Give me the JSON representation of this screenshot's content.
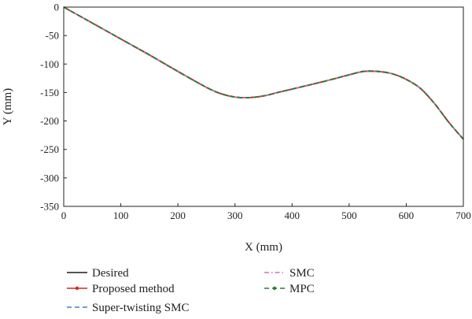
{
  "chart_data": {
    "type": "line",
    "title": "",
    "xlabel": "X (mm)",
    "ylabel": "Y (mm)",
    "xlim": [
      0,
      700
    ],
    "ylim": [
      -350,
      0
    ],
    "xticks": [
      0,
      100,
      200,
      300,
      400,
      500,
      600,
      700
    ],
    "yticks": [
      0,
      -50,
      -100,
      -150,
      -200,
      -250,
      -300,
      -350
    ],
    "grid": false,
    "legend_position": "bottom",
    "x": [
      0,
      50,
      100,
      150,
      200,
      250,
      275,
      300,
      325,
      350,
      375,
      400,
      450,
      500,
      525,
      550,
      575,
      600,
      625,
      650,
      675,
      700
    ],
    "series": [
      {
        "name": "Desired",
        "color": "#1a1a1a",
        "style": "solid",
        "values": [
          0,
          -28,
          -56,
          -84,
          -113,
          -141,
          -152,
          -158,
          -159,
          -156,
          -150,
          -144,
          -132,
          -119,
          -113,
          -113,
          -117,
          -127,
          -143,
          -170,
          -203,
          -232
        ]
      },
      {
        "name": "Proposed method",
        "color": "#d62728",
        "style": "solid-marker",
        "values": [
          0,
          -28,
          -56,
          -84,
          -113,
          -141,
          -152,
          -158,
          -159,
          -156,
          -150,
          -144,
          -132,
          -119,
          -113,
          -113,
          -117,
          -127,
          -143,
          -170,
          -203,
          -232
        ]
      },
      {
        "name": "Super-twisting SMC",
        "color": "#4a78c2",
        "style": "dashed",
        "values": [
          0,
          -28,
          -56,
          -84,
          -113,
          -141,
          -152,
          -158,
          -159,
          -156,
          -150,
          -144,
          -132,
          -119,
          -113,
          -113,
          -117,
          -127,
          -143,
          -170,
          -203,
          -232
        ]
      },
      {
        "name": "SMC",
        "color": "#d070b8",
        "style": "dashdot",
        "values": [
          0,
          -28,
          -56,
          -84,
          -113,
          -141,
          -152,
          -158,
          -159,
          -156,
          -150,
          -144,
          -132,
          -119,
          -113,
          -113,
          -117,
          -127,
          -143,
          -170,
          -203,
          -232
        ]
      },
      {
        "name": "MPC",
        "color": "#2e7d32",
        "style": "dashed-marker",
        "values": [
          0,
          -28,
          -56,
          -84,
          -113,
          -141,
          -152,
          -158,
          -159,
          -156,
          -150,
          -144,
          -132,
          -119,
          -113,
          -113,
          -117,
          -127,
          -143,
          -170,
          -203,
          -232
        ]
      }
    ]
  }
}
